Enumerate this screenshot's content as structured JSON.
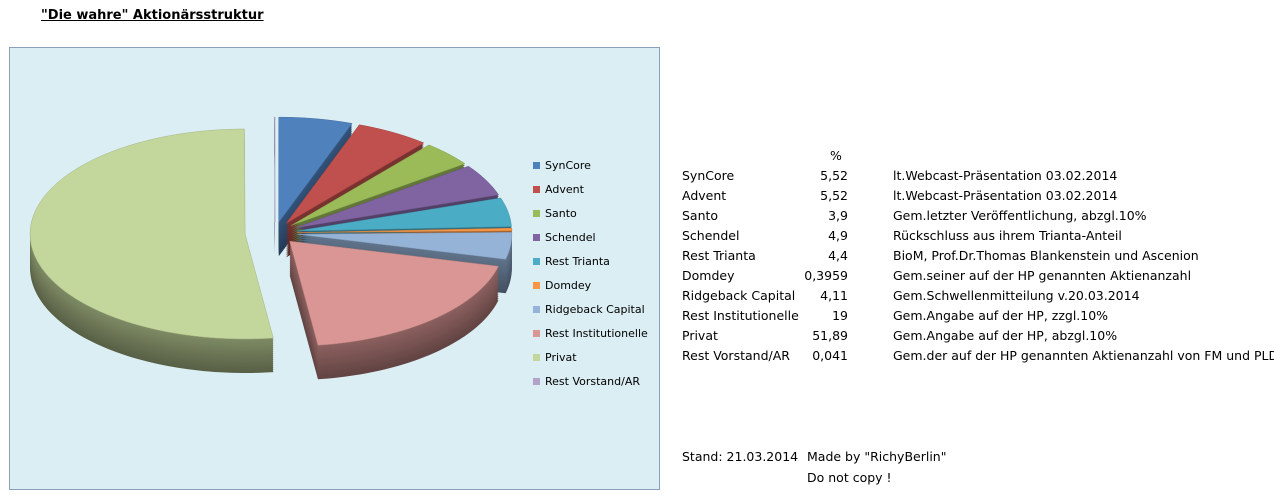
{
  "title": "\"Die wahre\" Aktionärsstruktur",
  "chart_data": {
    "type": "pie",
    "style": "3d-exploded",
    "legend_position": "right",
    "categories": [
      "SynCore",
      "Advent",
      "Santo",
      "Schendel",
      "Rest Trianta",
      "Domdey",
      "Ridgeback Capital",
      "Rest Institutionelle",
      "Privat",
      "Rest Vorstand/AR"
    ],
    "values": [
      5.52,
      5.52,
      3.9,
      4.9,
      4.4,
      0.3959,
      4.11,
      19,
      51.89,
      0.041
    ],
    "colors": [
      "#4f81bd",
      "#c0504d",
      "#9bbb59",
      "#8064a2",
      "#4bacc6",
      "#f79646",
      "#95b3d7",
      "#d99694",
      "#c3d69b",
      "#b3a2c7"
    ]
  },
  "table": {
    "unit_header": "%",
    "rows": [
      {
        "name": "SynCore",
        "value": "5,52",
        "comment": "lt.Webcast-Präsentation 03.02.2014"
      },
      {
        "name": "Advent",
        "value": "5,52",
        "comment": "lt.Webcast-Präsentation 03.02.2014"
      },
      {
        "name": "Santo",
        "value": "3,9",
        "comment": "Gem.letzter Veröffentlichung, abzgl.10%"
      },
      {
        "name": "Schendel",
        "value": "4,9",
        "comment": "Rückschluss aus ihrem Trianta-Anteil"
      },
      {
        "name": "Rest Trianta",
        "value": "4,4",
        "comment": "BioM, Prof.Dr.Thomas Blankenstein und Ascenion"
      },
      {
        "name": "Domdey",
        "value": "0,3959",
        "comment": "Gem.seiner auf der HP genannten Aktienanzahl"
      },
      {
        "name": "Ridgeback Capital",
        "value": "4,11",
        "comment": "Gem.Schwellenmitteilung v.20.03.2014"
      },
      {
        "name": "Rest Institutionelle",
        "value": "19",
        "comment": "Gem.Angabe auf der HP, zzgl.10%"
      },
      {
        "name": "Privat",
        "value": "51,89",
        "comment": "Gem.Angabe auf der HP, abzgl.10%"
      },
      {
        "name": "Rest Vorstand/AR",
        "value": "0,041",
        "comment": "Gem.der auf der HP genannten Aktienanzahl von FM und PLD"
      }
    ]
  },
  "footer": {
    "stand": "Stand: 21.03.2014",
    "made_by": "Made by \"RichyBerlin\"",
    "notice": "Do not copy !"
  }
}
